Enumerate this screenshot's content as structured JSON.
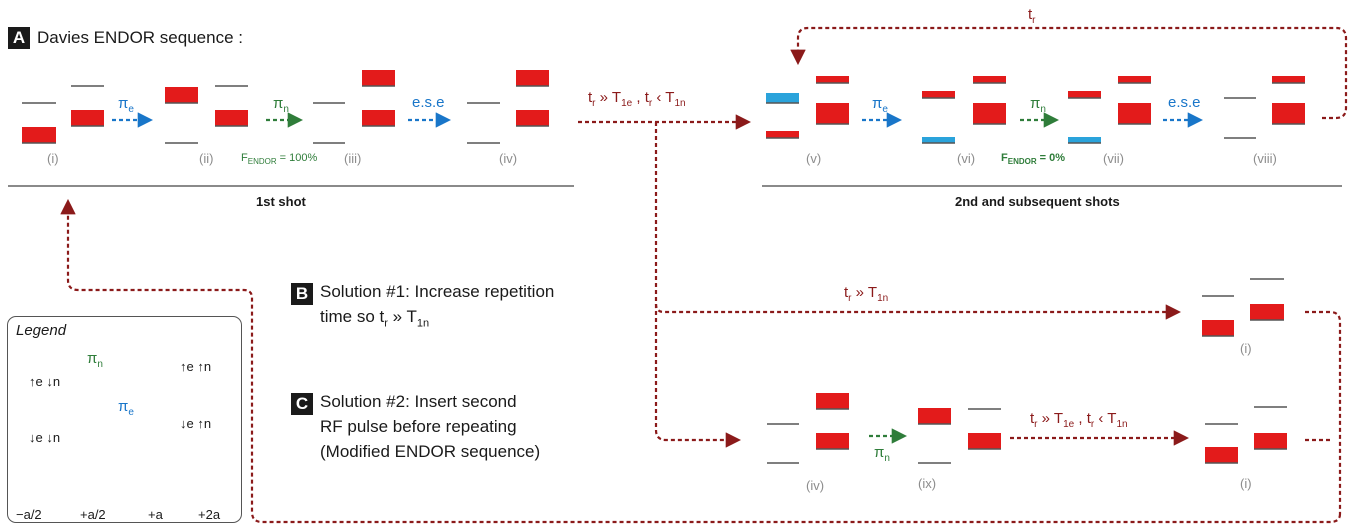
{
  "panel_a": {
    "badge": "A",
    "title": "Davies ENDOR sequence :",
    "first_shot_label": "1st  shot",
    "second_shot_label": "2nd and subsequent shots",
    "stage_labels_first": [
      "(i)",
      "(ii)",
      "(iii)",
      "(iv)"
    ],
    "stage_labels_second": [
      "(v)",
      "(vi)",
      "(vii)",
      "(viii)"
    ],
    "pulse_e": "π",
    "pulse_e_sub": "e",
    "pulse_n": "π",
    "pulse_n_sub": "n",
    "ese": "e.s.e",
    "f_endor_first_prefix": "F",
    "f_endor_first_sub": "ENDOR",
    "f_endor_first_value": " = 100%",
    "f_endor_second_prefix": "F",
    "f_endor_second_sub": "ENDOR",
    "f_endor_second_value": " = 0%",
    "relax_condition": {
      "t": "t",
      "t_sub": "r",
      "gg": " » T",
      "T1e_sub": "1e",
      "comma": " , t",
      "t2_sub": "r",
      "lt": " ‹ T",
      "T1n_sub": "1n"
    },
    "tr_loop": {
      "t": "t",
      "t_sub": "r"
    }
  },
  "panel_b": {
    "badge": "B",
    "line1": "Solution #1: Increase repetition",
    "line2_prefix": "time so t",
    "line2_sub": "r",
    "line2_mid": " » T",
    "line2_sub2": "1n",
    "arrow_label": {
      "t": "t",
      "t_sub": "r",
      "gg": " » T",
      "T_sub": "1n"
    },
    "stage_label": "(i)"
  },
  "panel_c": {
    "badge": "C",
    "line1": "Solution #2: Insert second",
    "line2": "RF pulse before repeating",
    "line3": "(Modified ENDOR sequence)",
    "stage_labels": [
      "(iv)",
      "(ix)",
      "(i)"
    ],
    "pulse_n": "π",
    "pulse_n_sub": "n",
    "relax_condition": {
      "t": "t",
      "t_sub": "r",
      "gg": " » T",
      "T1e_sub": "1e",
      "comma": " , t",
      "t2_sub": "r",
      "lt": " ‹ T",
      "T1n_sub": "1n"
    }
  },
  "legend": {
    "title": "Legend",
    "states": {
      "up_e_down_n": "↑e ↓n",
      "up_e_up_n": "↑e ↑n",
      "down_e_down_n": "↓e ↓n",
      "down_e_up_n": "↓e ↑n"
    },
    "pulse_n": "π",
    "pulse_n_sub": "n",
    "pulse_e": "π",
    "pulse_e_sub": "e",
    "population_labels": [
      "−a/2",
      "+a/2",
      "+a",
      "+2a"
    ]
  },
  "colors": {
    "population": "#e31b1b",
    "negative_population": "#2aa3db",
    "electron_pulse": "#1976c9",
    "nuclear_pulse": "#2f7d3a",
    "relaxation_path": "#8b1a1a",
    "level_line": "#555555"
  }
}
